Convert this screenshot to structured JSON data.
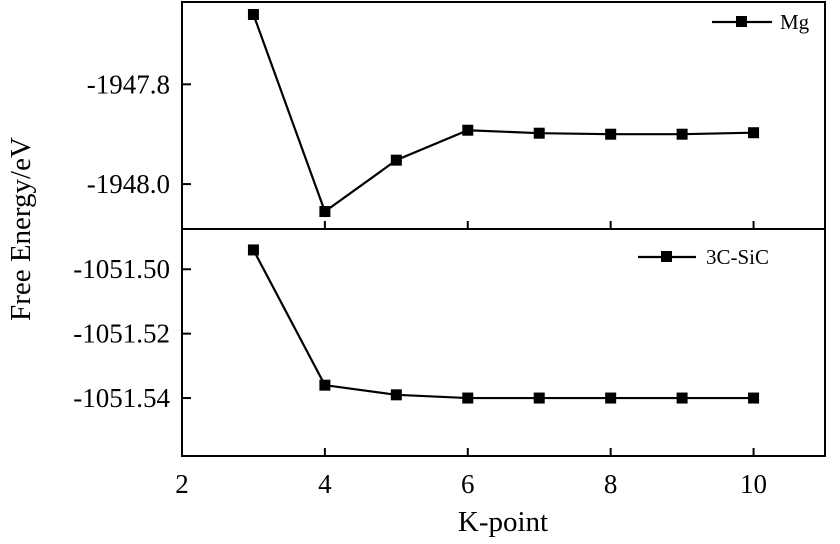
{
  "chart_data": [
    {
      "type": "line",
      "panel": "top",
      "series": [
        {
          "name": "Mg",
          "x": [
            3,
            4,
            5,
            6,
            7,
            8,
            9,
            10
          ],
          "values": [
            -1947.66,
            -1948.055,
            -1947.952,
            -1947.892,
            -1947.898,
            -1947.9,
            -1947.9,
            -1947.897
          ]
        }
      ],
      "xlim": [
        2,
        11
      ],
      "ylim": [
        -1948.09,
        -1947.635
      ],
      "yticks": [
        -1947.8,
        -1948.0
      ],
      "ytick_labels": [
        "-1947.8",
        "-1948.0"
      ],
      "legend_position": "top-right",
      "marker": "square",
      "color": "#000000"
    },
    {
      "type": "line",
      "panel": "bottom",
      "series": [
        {
          "name": "3C-SiC",
          "x": [
            3,
            4,
            5,
            6,
            7,
            8,
            9,
            10
          ],
          "values": [
            -1051.494,
            -1051.536,
            -1051.539,
            -1051.54,
            -1051.54,
            -1051.54,
            -1051.54,
            -1051.54
          ]
        }
      ],
      "xlim": [
        2,
        11
      ],
      "ylim": [
        -1051.558,
        -1051.4875
      ],
      "yticks": [
        -1051.5,
        -1051.52,
        -1051.54
      ],
      "ytick_labels": [
        "-1051.50",
        "-1051.52",
        "-1051.54"
      ],
      "legend_position": "top-right",
      "marker": "square",
      "color": "#000000"
    }
  ],
  "shared_axes": {
    "xlabel": "K-point",
    "ylabel": "Free Energy/eV",
    "xticks": [
      2,
      4,
      6,
      8,
      10
    ],
    "xtick_labels": [
      "2",
      "4",
      "6",
      "8",
      "10"
    ]
  }
}
